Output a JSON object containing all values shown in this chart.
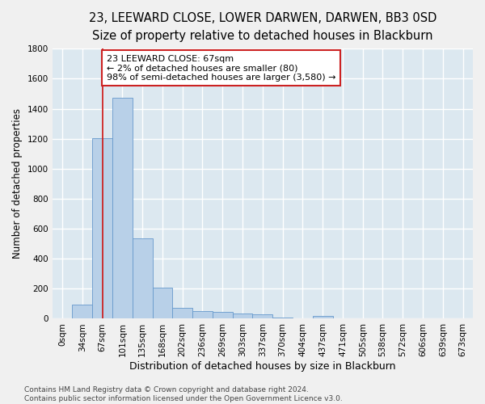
{
  "title": "23, LEEWARD CLOSE, LOWER DARWEN, DARWEN, BB3 0SD",
  "subtitle": "Size of property relative to detached houses in Blackburn",
  "xlabel": "Distribution of detached houses by size in Blackburn",
  "ylabel": "Number of detached properties",
  "bar_labels": [
    "0sqm",
    "34sqm",
    "67sqm",
    "101sqm",
    "135sqm",
    "168sqm",
    "202sqm",
    "236sqm",
    "269sqm",
    "303sqm",
    "337sqm",
    "370sqm",
    "404sqm",
    "437sqm",
    "471sqm",
    "505sqm",
    "538sqm",
    "572sqm",
    "606sqm",
    "639sqm",
    "673sqm"
  ],
  "bar_values": [
    0,
    95,
    1205,
    1475,
    535,
    205,
    75,
    50,
    45,
    35,
    28,
    10,
    5,
    20,
    0,
    0,
    0,
    0,
    0,
    0,
    0
  ],
  "bar_color": "#b8d0e8",
  "bar_edge_color": "#6699cc",
  "property_line_x": 2,
  "property_line_color": "#cc2222",
  "annotation_line1": "23 LEEWARD CLOSE: 67sqm",
  "annotation_line2": "← 2% of detached houses are smaller (80)",
  "annotation_line3": "98% of semi-detached houses are larger (3,580) →",
  "annotation_box_color": "#ffffff",
  "annotation_box_edge": "#cc2222",
  "ylim": [
    0,
    1800
  ],
  "yticks": [
    0,
    200,
    400,
    600,
    800,
    1000,
    1200,
    1400,
    1600,
    1800
  ],
  "background_color": "#dce8f0",
  "grid_color": "#ffffff",
  "fig_background": "#f0f0f0",
  "footnote": "Contains HM Land Registry data © Crown copyright and database right 2024.\nContains public sector information licensed under the Open Government Licence v3.0.",
  "title_fontsize": 10.5,
  "subtitle_fontsize": 9.5,
  "xlabel_fontsize": 9,
  "ylabel_fontsize": 8.5,
  "tick_fontsize": 7.5,
  "annotation_fontsize": 8,
  "footnote_fontsize": 6.5
}
